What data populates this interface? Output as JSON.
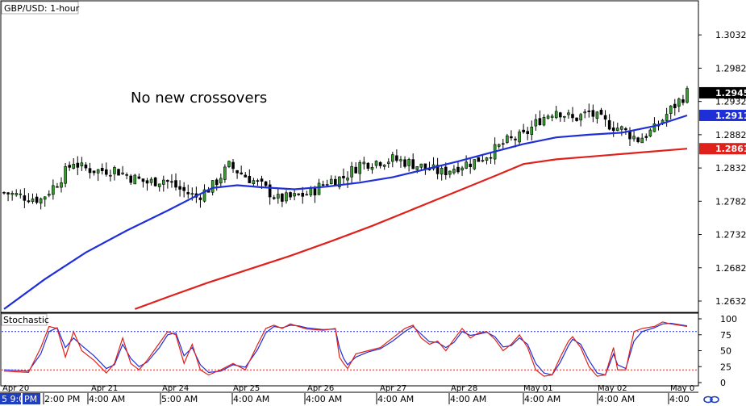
{
  "chart_data": {
    "type": "candlestick",
    "title": "GBP/USD: 1-hour",
    "annotation": "No new crossovers",
    "price_axis": {
      "ylim": [
        1.2615,
        1.3082
      ],
      "ticks": [
        "1.3032",
        "1.2982",
        "1.2932",
        "1.2882",
        "1.2832",
        "1.2782",
        "1.2732",
        "1.2682",
        "1.2632"
      ]
    },
    "price_labels": [
      {
        "label": "1.2945",
        "value": 1.2945,
        "bg": "#000000",
        "fg": "#ffffff"
      },
      {
        "label": "1.2911",
        "value": 1.2911,
        "bg": "#1f2fd8",
        "fg": "#ffffff"
      },
      {
        "label": "1.2861",
        "value": 1.2861,
        "bg": "#e0211b",
        "fg": "#ffffff"
      }
    ],
    "date_labels": [
      "Apr 20",
      "Apr 21",
      "Apr 24",
      "Apr 25",
      "Apr 26",
      "Apr 27",
      "Apr 28",
      "May 01",
      "May 02",
      "May 0"
    ],
    "time_labels": [
      "5 9:0",
      "PM",
      "2:00 PM",
      "4:00 AM",
      "5:00 AM",
      "4:00 AM",
      "4:00 AM",
      "4:00 AM",
      "4:00 AM",
      "4:00 AM",
      "4:00 AM",
      "4:00"
    ],
    "candle_count": 168,
    "close_path": [
      [
        0,
        1.2795
      ],
      [
        4,
        1.279
      ],
      [
        9,
        1.2785
      ],
      [
        13,
        1.281
      ],
      [
        17,
        1.2842
      ],
      [
        19,
        1.2832
      ],
      [
        23,
        1.2828
      ],
      [
        27,
        1.283
      ],
      [
        31,
        1.2818
      ],
      [
        35,
        1.281
      ],
      [
        39,
        1.2815
      ],
      [
        43,
        1.28
      ],
      [
        47,
        1.2788
      ],
      [
        51,
        1.2805
      ],
      [
        55,
        1.2835
      ],
      [
        59,
        1.282
      ],
      [
        63,
        1.2805
      ],
      [
        67,
        1.2785
      ],
      [
        71,
        1.2788
      ],
      [
        75,
        1.2795
      ],
      [
        79,
        1.2812
      ],
      [
        83,
        1.2818
      ],
      [
        87,
        1.2838
      ],
      [
        91,
        1.2842
      ],
      [
        95,
        1.2845
      ],
      [
        99,
        1.284
      ],
      [
        103,
        1.2832
      ],
      [
        107,
        1.2825
      ],
      [
        111,
        1.2835
      ],
      [
        115,
        1.2842
      ],
      [
        119,
        1.2855
      ],
      [
        123,
        1.2872
      ],
      [
        127,
        1.288
      ],
      [
        131,
        1.2905
      ],
      [
        135,
        1.292
      ],
      [
        139,
        1.2905
      ],
      [
        143,
        1.2915
      ],
      [
        147,
        1.29
      ],
      [
        151,
        1.289
      ],
      [
        155,
        1.2875
      ],
      [
        159,
        1.289
      ],
      [
        163,
        1.292
      ],
      [
        167,
        1.2945
      ]
    ],
    "ma_blue": {
      "color": "#1f2fd8",
      "points": [
        [
          0,
          1.262
        ],
        [
          10,
          1.2665
        ],
        [
          20,
          1.2705
        ],
        [
          30,
          1.2738
        ],
        [
          40,
          1.2768
        ],
        [
          47,
          1.279
        ],
        [
          51,
          1.2802
        ],
        [
          57,
          1.2806
        ],
        [
          63,
          1.2803
        ],
        [
          71,
          1.28
        ],
        [
          79,
          1.2804
        ],
        [
          87,
          1.281
        ],
        [
          95,
          1.2818
        ],
        [
          103,
          1.283
        ],
        [
          111,
          1.2842
        ],
        [
          119,
          1.2855
        ],
        [
          127,
          1.2868
        ],
        [
          135,
          1.2878
        ],
        [
          143,
          1.2882
        ],
        [
          151,
          1.2885
        ],
        [
          159,
          1.2895
        ],
        [
          167,
          1.2911
        ]
      ]
    },
    "ma_red": {
      "color": "#e0211b",
      "points": [
        [
          32,
          1.262
        ],
        [
          40,
          1.2638
        ],
        [
          50,
          1.266
        ],
        [
          60,
          1.268
        ],
        [
          70,
          1.27
        ],
        [
          80,
          1.2722
        ],
        [
          90,
          1.2745
        ],
        [
          100,
          1.277
        ],
        [
          110,
          1.2795
        ],
        [
          120,
          1.282
        ],
        [
          127,
          1.2838
        ],
        [
          135,
          1.2845
        ],
        [
          145,
          1.285
        ],
        [
          155,
          1.2855
        ],
        [
          167,
          1.2861
        ]
      ]
    },
    "stochastic": {
      "label": "Stochastic",
      "ylim": [
        0,
        100
      ],
      "ticks": [
        "100",
        "75",
        "50",
        "25",
        "0"
      ],
      "overbought": 80,
      "oversold": 20,
      "k_color": "#e0211b",
      "d_color": "#1f2fd8",
      "k": [
        [
          0,
          18
        ],
        [
          6,
          16
        ],
        [
          9,
          55
        ],
        [
          11,
          88
        ],
        [
          13,
          85
        ],
        [
          15,
          40
        ],
        [
          17,
          80
        ],
        [
          19,
          50
        ],
        [
          22,
          35
        ],
        [
          25,
          15
        ],
        [
          27,
          30
        ],
        [
          29,
          70
        ],
        [
          31,
          30
        ],
        [
          33,
          20
        ],
        [
          35,
          35
        ],
        [
          38,
          62
        ],
        [
          40,
          80
        ],
        [
          42,
          75
        ],
        [
          44,
          30
        ],
        [
          46,
          60
        ],
        [
          48,
          20
        ],
        [
          50,
          12
        ],
        [
          53,
          20
        ],
        [
          56,
          30
        ],
        [
          59,
          20
        ],
        [
          62,
          60
        ],
        [
          64,
          85
        ],
        [
          66,
          90
        ],
        [
          68,
          85
        ],
        [
          70,
          92
        ],
        [
          72,
          88
        ],
        [
          74,
          84
        ],
        [
          78,
          82
        ],
        [
          81,
          85
        ],
        [
          82,
          40
        ],
        [
          83,
          30
        ],
        [
          84,
          22
        ],
        [
          86,
          45
        ],
        [
          89,
          50
        ],
        [
          92,
          55
        ],
        [
          95,
          70
        ],
        [
          98,
          85
        ],
        [
          100,
          90
        ],
        [
          102,
          70
        ],
        [
          104,
          60
        ],
        [
          106,
          65
        ],
        [
          108,
          50
        ],
        [
          110,
          68
        ],
        [
          112,
          85
        ],
        [
          114,
          70
        ],
        [
          116,
          78
        ],
        [
          118,
          80
        ],
        [
          120,
          68
        ],
        [
          122,
          50
        ],
        [
          124,
          60
        ],
        [
          126,
          75
        ],
        [
          128,
          55
        ],
        [
          130,
          20
        ],
        [
          132,
          10
        ],
        [
          134,
          12
        ],
        [
          136,
          40
        ],
        [
          138,
          65
        ],
        [
          139,
          72
        ],
        [
          141,
          55
        ],
        [
          143,
          25
        ],
        [
          145,
          10
        ],
        [
          147,
          12
        ],
        [
          149,
          55
        ],
        [
          150,
          20
        ],
        [
          152,
          20
        ],
        [
          154,
          80
        ],
        [
          156,
          85
        ],
        [
          159,
          88
        ],
        [
          161,
          95
        ],
        [
          163,
          92
        ],
        [
          165,
          90
        ],
        [
          167,
          88
        ]
      ],
      "d": [
        [
          0,
          20
        ],
        [
          6,
          18
        ],
        [
          9,
          45
        ],
        [
          11,
          80
        ],
        [
          13,
          86
        ],
        [
          15,
          55
        ],
        [
          17,
          70
        ],
        [
          19,
          58
        ],
        [
          22,
          42
        ],
        [
          25,
          22
        ],
        [
          27,
          28
        ],
        [
          29,
          60
        ],
        [
          31,
          38
        ],
        [
          33,
          25
        ],
        [
          35,
          32
        ],
        [
          38,
          55
        ],
        [
          40,
          75
        ],
        [
          42,
          78
        ],
        [
          44,
          42
        ],
        [
          46,
          55
        ],
        [
          48,
          28
        ],
        [
          50,
          16
        ],
        [
          53,
          18
        ],
        [
          56,
          28
        ],
        [
          59,
          24
        ],
        [
          62,
          52
        ],
        [
          64,
          78
        ],
        [
          66,
          88
        ],
        [
          68,
          86
        ],
        [
          70,
          90
        ],
        [
          72,
          89
        ],
        [
          74,
          86
        ],
        [
          78,
          83
        ],
        [
          81,
          84
        ],
        [
          82,
          55
        ],
        [
          83,
          38
        ],
        [
          84,
          28
        ],
        [
          86,
          40
        ],
        [
          89,
          48
        ],
        [
          92,
          53
        ],
        [
          95,
          65
        ],
        [
          98,
          80
        ],
        [
          100,
          88
        ],
        [
          102,
          76
        ],
        [
          104,
          64
        ],
        [
          106,
          63
        ],
        [
          108,
          55
        ],
        [
          110,
          63
        ],
        [
          112,
          80
        ],
        [
          114,
          74
        ],
        [
          116,
          76
        ],
        [
          118,
          79
        ],
        [
          120,
          72
        ],
        [
          122,
          56
        ],
        [
          124,
          58
        ],
        [
          126,
          70
        ],
        [
          128,
          60
        ],
        [
          130,
          30
        ],
        [
          132,
          15
        ],
        [
          134,
          12
        ],
        [
          136,
          32
        ],
        [
          138,
          58
        ],
        [
          139,
          68
        ],
        [
          141,
          60
        ],
        [
          143,
          35
        ],
        [
          145,
          15
        ],
        [
          147,
          12
        ],
        [
          149,
          45
        ],
        [
          150,
          28
        ],
        [
          152,
          22
        ],
        [
          154,
          65
        ],
        [
          156,
          80
        ],
        [
          159,
          86
        ],
        [
          161,
          92
        ],
        [
          163,
          93
        ],
        [
          165,
          91
        ],
        [
          167,
          89
        ]
      ]
    }
  }
}
